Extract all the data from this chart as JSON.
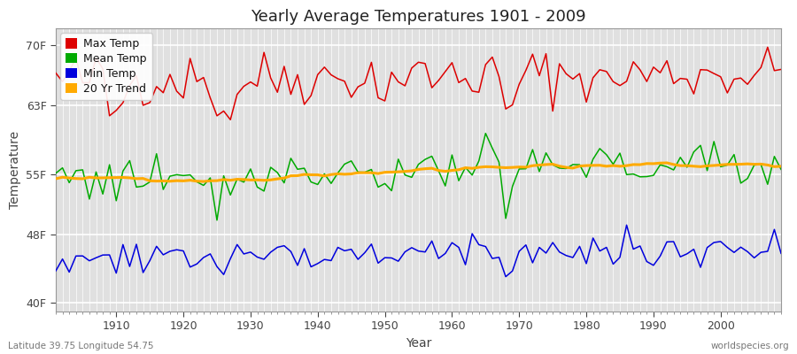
{
  "title": "Yearly Average Temperatures 1901 - 2009",
  "xlabel": "Year",
  "ylabel": "Temperature",
  "latitude_label": "Latitude 39.75 Longitude 54.75",
  "watermark": "worldspecies.org",
  "start_year": 1901,
  "end_year": 2009,
  "yticks": [
    40,
    48,
    55,
    63,
    70
  ],
  "ytick_labels": [
    "40F",
    "48F",
    "55F",
    "63F",
    "70F"
  ],
  "ylim": [
    39.0,
    72.0
  ],
  "xlim": [
    1901,
    2009
  ],
  "plot_bg_color": "#e0e0e0",
  "fig_bg_color": "#ffffff",
  "grid_color": "#ffffff",
  "legend_entries": [
    {
      "label": "Max Temp",
      "color": "#dd0000"
    },
    {
      "label": "Mean Temp",
      "color": "#00aa00"
    },
    {
      "label": "Min Temp",
      "color": "#0000dd"
    },
    {
      "label": "20 Yr Trend",
      "color": "#ffaa00"
    }
  ],
  "max_temp_base": 66.0,
  "mean_temp_base": 54.8,
  "min_temp_base": 45.2
}
